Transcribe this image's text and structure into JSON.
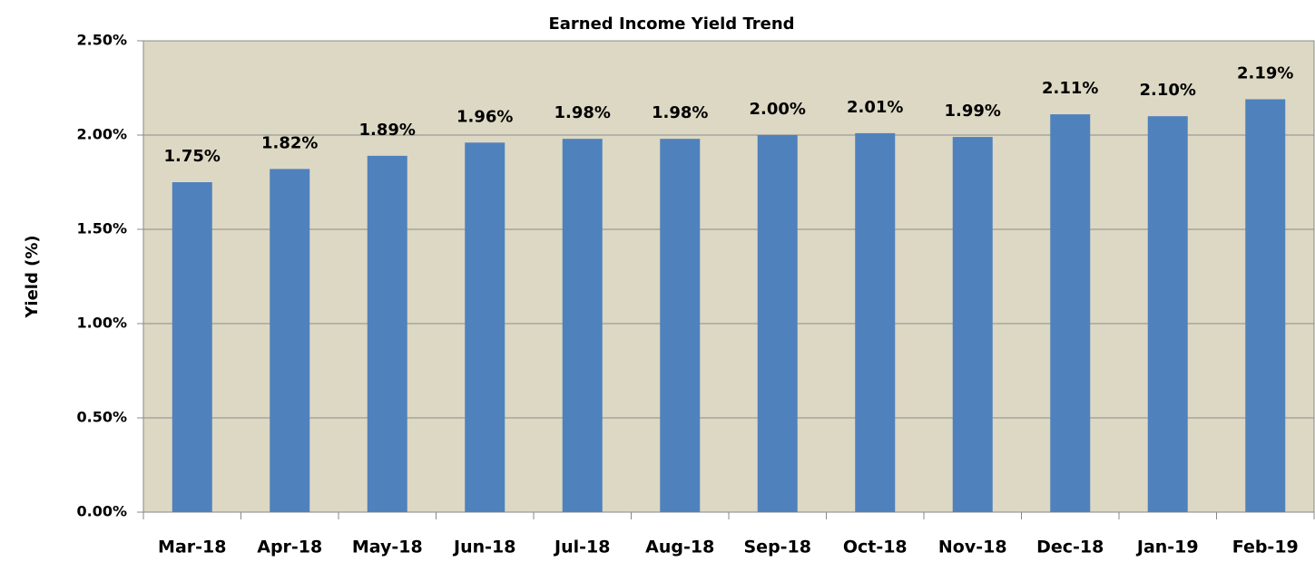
{
  "chart_data": {
    "type": "bar",
    "title": "Earned Income Yield Trend",
    "y_label": "Yield (%)",
    "categories": [
      "Mar-18",
      "Apr-18",
      "May-18",
      "Jun-18",
      "Jul-18",
      "Aug-18",
      "Sep-18",
      "Oct-18",
      "Nov-18",
      "Dec-18",
      "Jan-19",
      "Feb-19"
    ],
    "values": [
      1.75,
      1.82,
      1.89,
      1.96,
      1.98,
      1.98,
      2.0,
      2.01,
      1.99,
      2.11,
      2.1,
      2.19
    ],
    "value_labels": [
      "1.75%",
      "1.82%",
      "1.89%",
      "1.96%",
      "1.98%",
      "1.98%",
      "2.00%",
      "2.01%",
      "1.99%",
      "2.11%",
      "2.10%",
      "2.19%"
    ],
    "color": "#4f81bd",
    "background": "#ddd8c3",
    "ylim": [
      0,
      2.5
    ],
    "yticks": [
      {
        "value": 0,
        "label": "0.00%"
      },
      {
        "value": 0.5,
        "label": "0.50%"
      },
      {
        "value": 1,
        "label": "1.00%"
      },
      {
        "value": 1.5,
        "label": "1.50%"
      },
      {
        "value": 2,
        "label": "2.00%"
      },
      {
        "value": 2.5,
        "label": "2.50%"
      }
    ],
    "grid": true
  }
}
